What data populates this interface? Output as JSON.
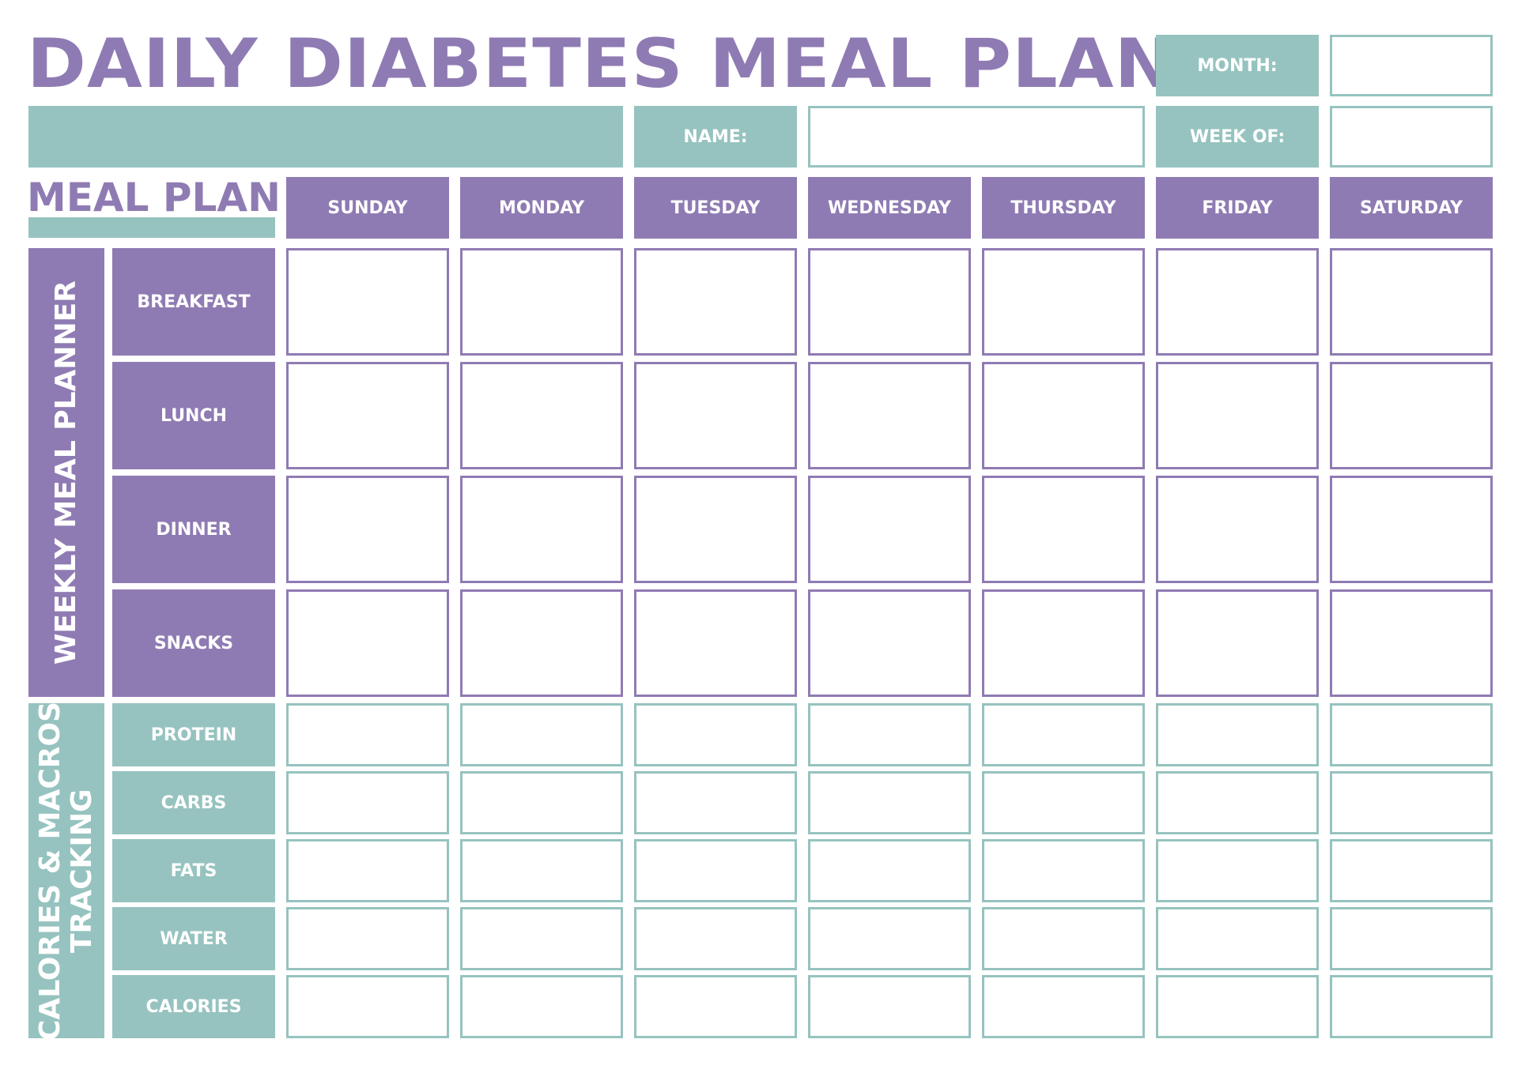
{
  "title": "DAILY DIABETES MEAL PLAN",
  "header": {
    "month_label": "MONTH:",
    "name_label": "NAME:",
    "week_of_label": "WEEK OF:",
    "meal_plan_label": "MEAL PLAN"
  },
  "days": [
    "SUNDAY",
    "MONDAY",
    "TUESDAY",
    "WEDNESDAY",
    "THURSDAY",
    "FRIDAY",
    "SATURDAY"
  ],
  "weekly_section": {
    "label": "WEEKLY MEAL PLANNER",
    "rows": [
      "BREAKFAST",
      "LUNCH",
      "DINNER",
      "SNACKS"
    ]
  },
  "macros_section": {
    "label_line1": "CALORIES & MACROS",
    "label_line2": "TRACKING",
    "rows": [
      "PROTEIN",
      "CARBS",
      "FATS",
      "WATER",
      "CALORIES"
    ]
  },
  "colors": {
    "purple": "#8f7bb3",
    "teal": "#96c3bf"
  }
}
